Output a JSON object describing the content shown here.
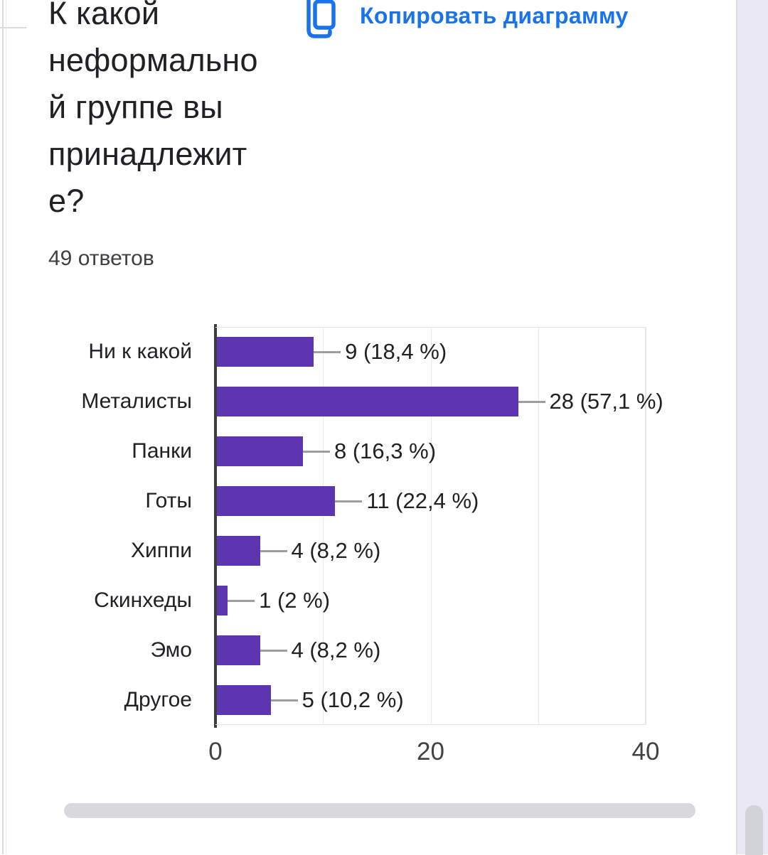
{
  "header": {
    "title": "К какой неформальной группе вы принадлежите?",
    "title_lines": [
      "К какой",
      "неформально",
      "й группе вы",
      "принадлежит",
      "е?"
    ],
    "responses_label": "49 ответов",
    "copy_button": {
      "label": "Копировать диаграмму",
      "color": "#1a73e8",
      "icon": "copy-icon"
    }
  },
  "chart_data": {
    "type": "bar",
    "orientation": "horizontal",
    "title": "К какой неформальной группе вы принадлежите?",
    "total_responses": 49,
    "categories": [
      "Ни к какой",
      "Металисты",
      "Панки",
      "Готы",
      "Хиппи",
      "Скинхеды",
      "Эмо",
      "Другое"
    ],
    "values": [
      9,
      28,
      8,
      11,
      4,
      1,
      4,
      5
    ],
    "value_labels": [
      "9 (18,4 %)",
      "28 (57,1 %)",
      "8 (16,3 %)",
      "11 (22,4 %)",
      "4 (8,2 %)",
      "1 (2 %)",
      "4 (8,2 %)",
      "5 (10,2 %)"
    ],
    "xlim": [
      0,
      40
    ],
    "x_ticks": [
      0,
      20,
      40
    ],
    "gridline_values": [
      10,
      20,
      30,
      40
    ],
    "grid": true,
    "bar_color": "#5e35b1",
    "connector_color": "#9e9e9e"
  },
  "colors": {
    "accent_blue": "#1a73e8",
    "bar_purple": "#5e35b1",
    "text_dark": "#202124",
    "tick_text": "#424242",
    "scrollbar": "#d8d8dd",
    "side_panel": "#e9e8f4"
  }
}
